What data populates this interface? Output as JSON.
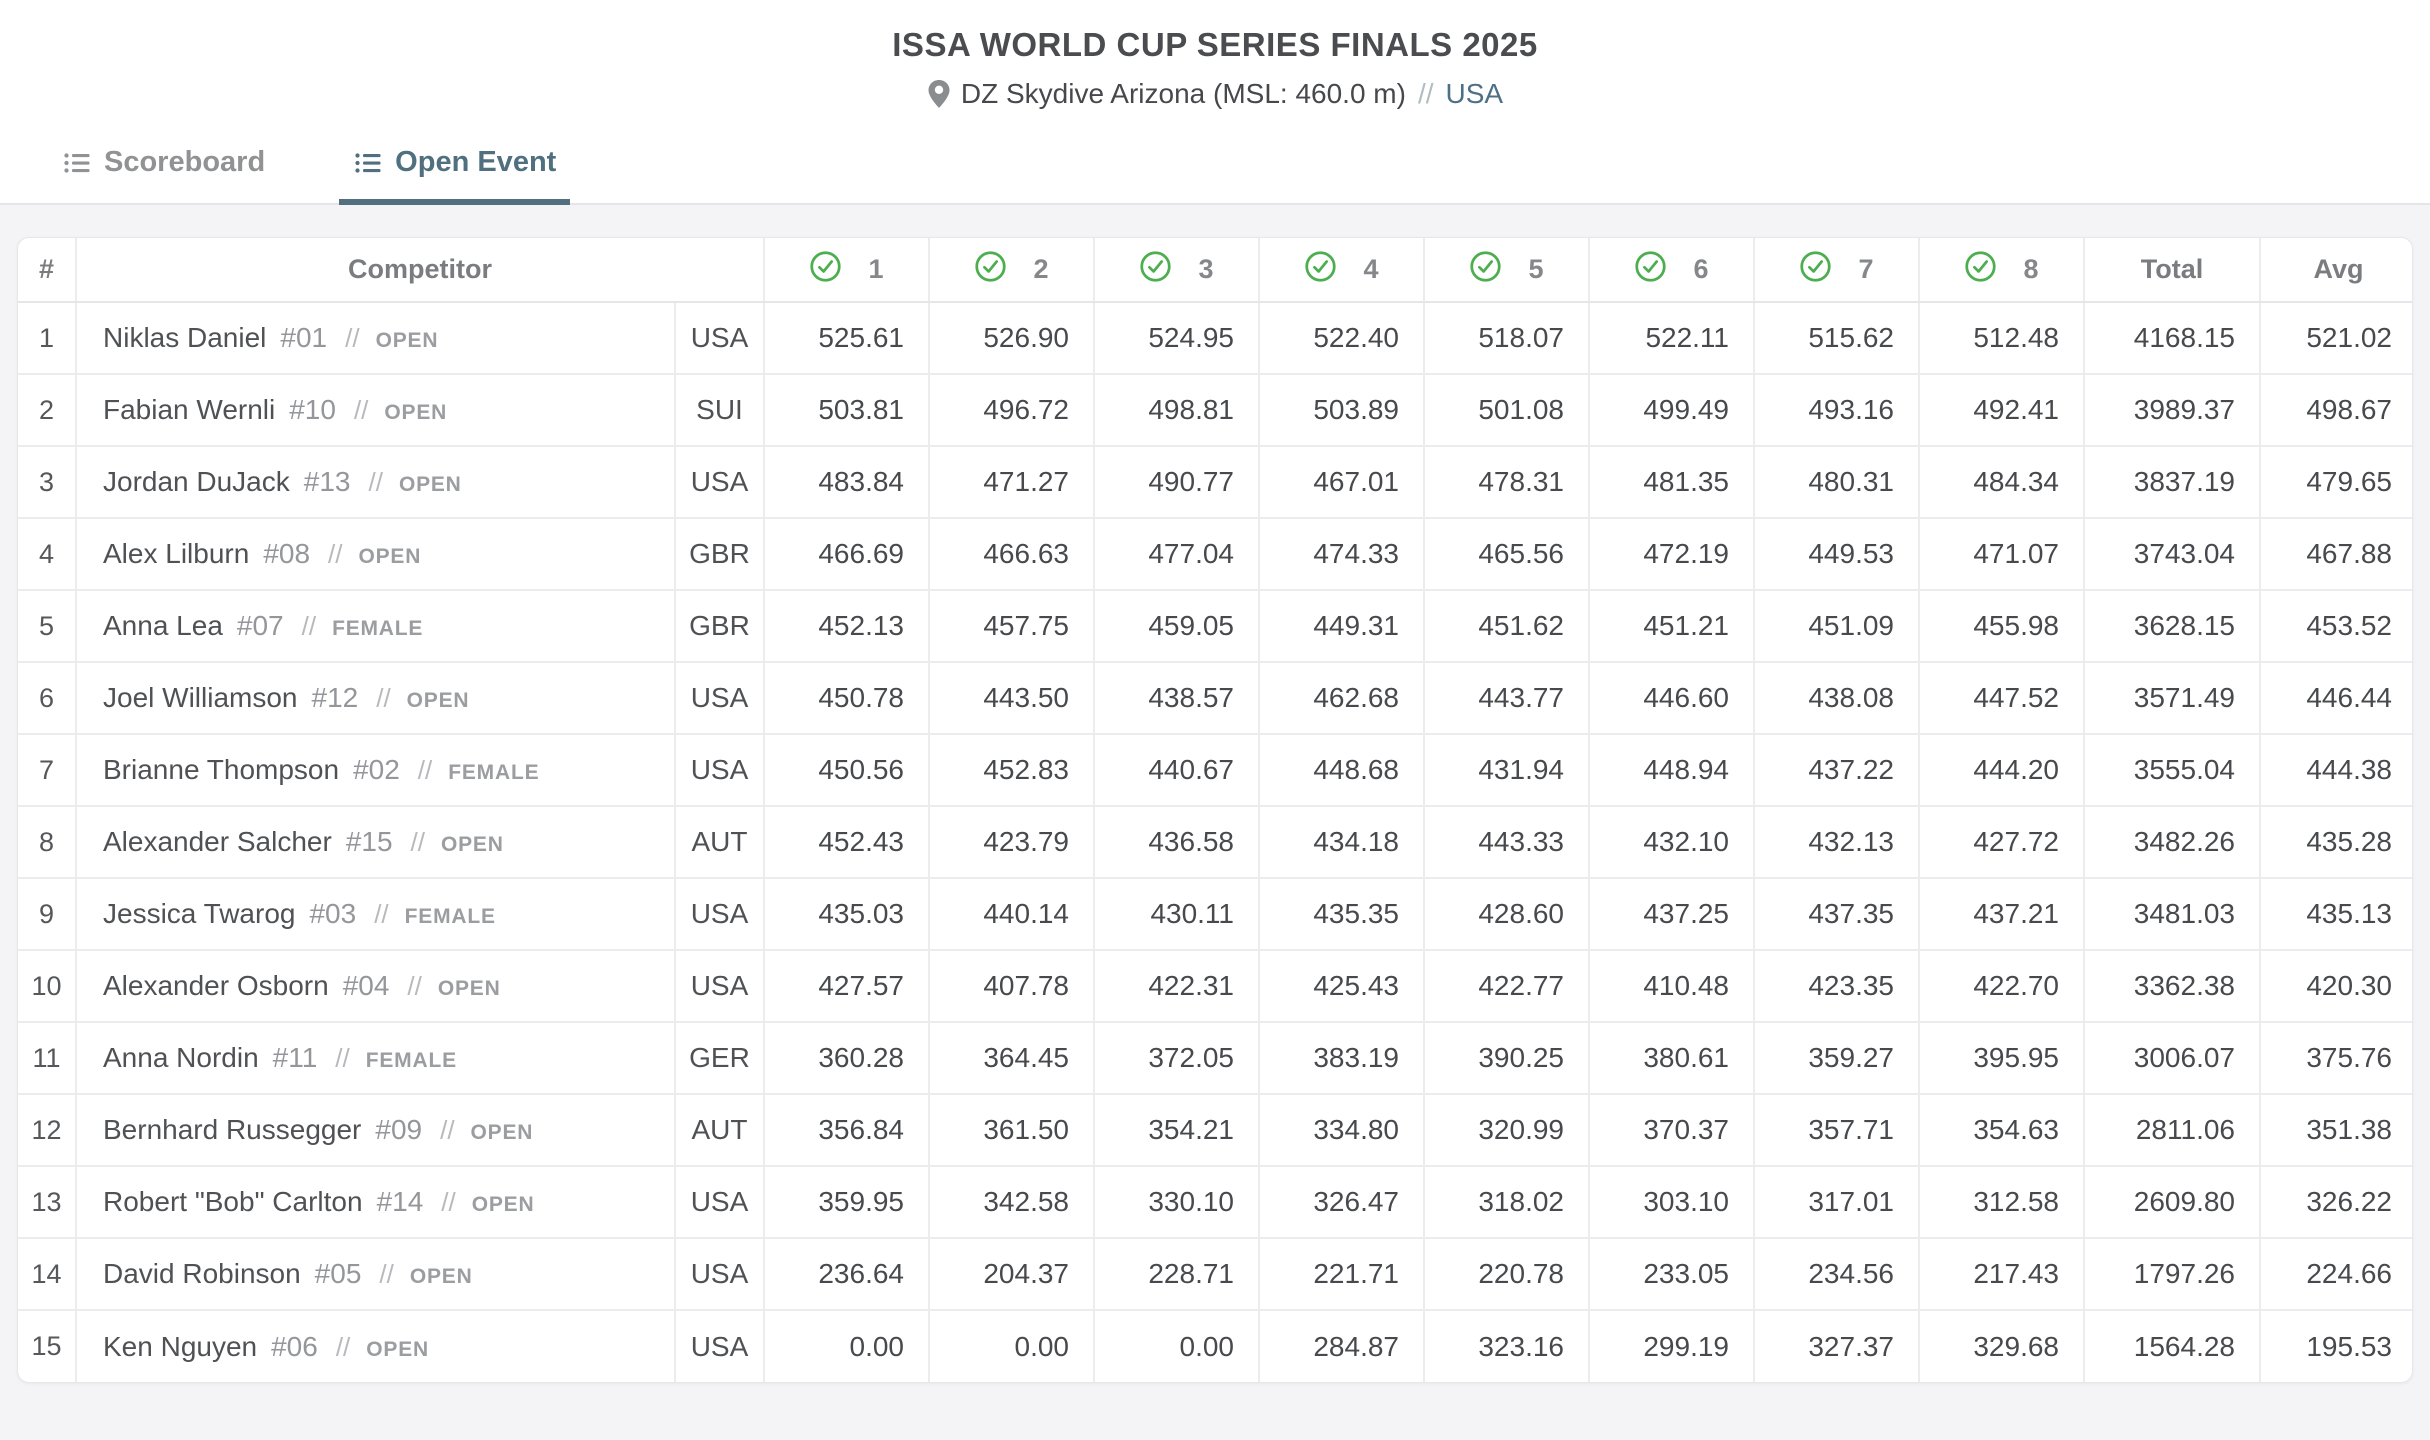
{
  "page": {
    "title": "ISSA WORLD CUP SERIES FINALS 2025",
    "location": {
      "venue": "DZ Skydive Arizona (MSL: 460.0 m)",
      "separator": "//",
      "country": "USA"
    }
  },
  "icons": {
    "location": "pin-icon",
    "tab_list": "list-icon",
    "round_complete": "check-circle-icon"
  },
  "colors": {
    "accent_green": "#4cae4f",
    "accent_slate": "#50707f",
    "link": "#4d7086",
    "page_bg": "#f4f4f6"
  },
  "tabs": [
    {
      "label": "Scoreboard",
      "active": false
    },
    {
      "label": "Open Event",
      "active": true
    }
  ],
  "table": {
    "rank_header": "#",
    "competitor_header": "Competitor",
    "round_headers": [
      "1",
      "2",
      "3",
      "4",
      "5",
      "6",
      "7",
      "8"
    ],
    "total_header": "Total",
    "avg_header": "Avg",
    "rows": [
      {
        "rank": "1",
        "name": "Niklas Daniel",
        "bib": "#01",
        "sep": "//",
        "category": "OPEN",
        "country": "USA",
        "scores": [
          "525.61",
          "526.90",
          "524.95",
          "522.40",
          "518.07",
          "522.11",
          "515.62",
          "512.48"
        ],
        "total": "4168.15",
        "avg": "521.02"
      },
      {
        "rank": "2",
        "name": "Fabian Wernli",
        "bib": "#10",
        "sep": "//",
        "category": "OPEN",
        "country": "SUI",
        "scores": [
          "503.81",
          "496.72",
          "498.81",
          "503.89",
          "501.08",
          "499.49",
          "493.16",
          "492.41"
        ],
        "total": "3989.37",
        "avg": "498.67"
      },
      {
        "rank": "3",
        "name": "Jordan DuJack",
        "bib": "#13",
        "sep": "//",
        "category": "OPEN",
        "country": "USA",
        "scores": [
          "483.84",
          "471.27",
          "490.77",
          "467.01",
          "478.31",
          "481.35",
          "480.31",
          "484.34"
        ],
        "total": "3837.19",
        "avg": "479.65"
      },
      {
        "rank": "4",
        "name": "Alex Lilburn",
        "bib": "#08",
        "sep": "//",
        "category": "OPEN",
        "country": "GBR",
        "scores": [
          "466.69",
          "466.63",
          "477.04",
          "474.33",
          "465.56",
          "472.19",
          "449.53",
          "471.07"
        ],
        "total": "3743.04",
        "avg": "467.88"
      },
      {
        "rank": "5",
        "name": "Anna Lea",
        "bib": "#07",
        "sep": "//",
        "category": "FEMALE",
        "country": "GBR",
        "scores": [
          "452.13",
          "457.75",
          "459.05",
          "449.31",
          "451.62",
          "451.21",
          "451.09",
          "455.98"
        ],
        "total": "3628.15",
        "avg": "453.52"
      },
      {
        "rank": "6",
        "name": "Joel Williamson",
        "bib": "#12",
        "sep": "//",
        "category": "OPEN",
        "country": "USA",
        "scores": [
          "450.78",
          "443.50",
          "438.57",
          "462.68",
          "443.77",
          "446.60",
          "438.08",
          "447.52"
        ],
        "total": "3571.49",
        "avg": "446.44"
      },
      {
        "rank": "7",
        "name": "Brianne Thompson",
        "bib": "#02",
        "sep": "//",
        "category": "FEMALE",
        "country": "USA",
        "scores": [
          "450.56",
          "452.83",
          "440.67",
          "448.68",
          "431.94",
          "448.94",
          "437.22",
          "444.20"
        ],
        "total": "3555.04",
        "avg": "444.38"
      },
      {
        "rank": "8",
        "name": "Alexander Salcher",
        "bib": "#15",
        "sep": "//",
        "category": "OPEN",
        "country": "AUT",
        "scores": [
          "452.43",
          "423.79",
          "436.58",
          "434.18",
          "443.33",
          "432.10",
          "432.13",
          "427.72"
        ],
        "total": "3482.26",
        "avg": "435.28"
      },
      {
        "rank": "9",
        "name": "Jessica Twarog",
        "bib": "#03",
        "sep": "//",
        "category": "FEMALE",
        "country": "USA",
        "scores": [
          "435.03",
          "440.14",
          "430.11",
          "435.35",
          "428.60",
          "437.25",
          "437.35",
          "437.21"
        ],
        "total": "3481.03",
        "avg": "435.13"
      },
      {
        "rank": "10",
        "name": "Alexander Osborn",
        "bib": "#04",
        "sep": "//",
        "category": "OPEN",
        "country": "USA",
        "scores": [
          "427.57",
          "407.78",
          "422.31",
          "425.43",
          "422.77",
          "410.48",
          "423.35",
          "422.70"
        ],
        "total": "3362.38",
        "avg": "420.30"
      },
      {
        "rank": "11",
        "name": "Anna Nordin",
        "bib": "#11",
        "sep": "//",
        "category": "FEMALE",
        "country": "GER",
        "scores": [
          "360.28",
          "364.45",
          "372.05",
          "383.19",
          "390.25",
          "380.61",
          "359.27",
          "395.95"
        ],
        "total": "3006.07",
        "avg": "375.76"
      },
      {
        "rank": "12",
        "name": "Bernhard Russegger",
        "bib": "#09",
        "sep": "//",
        "category": "OPEN",
        "country": "AUT",
        "scores": [
          "356.84",
          "361.50",
          "354.21",
          "334.80",
          "320.99",
          "370.37",
          "357.71",
          "354.63"
        ],
        "total": "2811.06",
        "avg": "351.38"
      },
      {
        "rank": "13",
        "name": "Robert \"Bob\" Carlton",
        "bib": "#14",
        "sep": "//",
        "category": "OPEN",
        "country": "USA",
        "scores": [
          "359.95",
          "342.58",
          "330.10",
          "326.47",
          "318.02",
          "303.10",
          "317.01",
          "312.58"
        ],
        "total": "2609.80",
        "avg": "326.22"
      },
      {
        "rank": "14",
        "name": "David Robinson",
        "bib": "#05",
        "sep": "//",
        "category": "OPEN",
        "country": "USA",
        "scores": [
          "236.64",
          "204.37",
          "228.71",
          "221.71",
          "220.78",
          "233.05",
          "234.56",
          "217.43"
        ],
        "total": "1797.26",
        "avg": "224.66"
      },
      {
        "rank": "15",
        "name": "Ken Nguyen",
        "bib": "#06",
        "sep": "//",
        "category": "OPEN",
        "country": "USA",
        "scores": [
          "0.00",
          "0.00",
          "0.00",
          "284.87",
          "323.16",
          "299.19",
          "327.37",
          "329.68"
        ],
        "total": "1564.28",
        "avg": "195.53"
      }
    ]
  }
}
